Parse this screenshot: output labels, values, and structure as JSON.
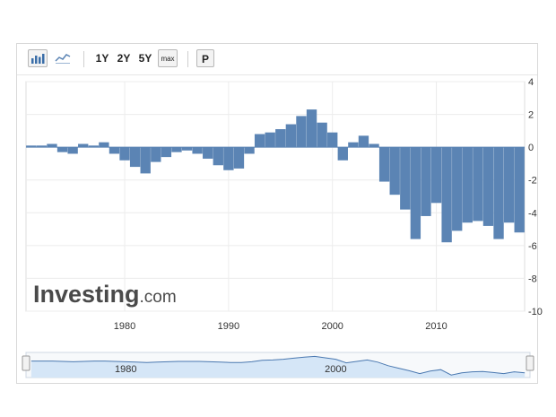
{
  "toolbar": {
    "buttons": [
      {
        "id": "bar-chart",
        "icon": "bar-chart-icon"
      },
      {
        "id": "line-chart",
        "icon": "line-chart-icon"
      },
      {
        "id": "1y",
        "label": "1Y"
      },
      {
        "id": "2y",
        "label": "2Y"
      },
      {
        "id": "5y",
        "label": "5Y"
      },
      {
        "id": "max",
        "label": "max"
      },
      {
        "id": "p",
        "label": "P"
      }
    ]
  },
  "watermark": {
    "brand": "Investing",
    "suffix": ".com"
  },
  "colors": {
    "bar": "#5b84b4",
    "navigator_fill": "#d5e6f7",
    "navigator_line": "#4a78b0",
    "grid": "#ececec"
  },
  "chart_data": {
    "type": "bar",
    "title": "",
    "xlabel": "",
    "ylabel": "",
    "xlim": [
      1970.5,
      2018.5
    ],
    "ylim": [
      -10,
      4
    ],
    "x_ticks": [
      1980,
      1990,
      2000,
      2010
    ],
    "y_ticks": [
      4,
      2,
      0,
      -2,
      -4,
      -6,
      -8,
      -10
    ],
    "y_axis_side": "right",
    "grid": true,
    "series": [
      {
        "x": [
          1971,
          1972,
          1973,
          1974,
          1975,
          1976,
          1977,
          1978,
          1979,
          1980,
          1981,
          1982,
          1983,
          1984,
          1985,
          1986,
          1987,
          1988,
          1989,
          1990,
          1991,
          1992,
          1993,
          1994,
          1995,
          1996,
          1997,
          1998,
          1999,
          2000,
          2001,
          2002,
          2003,
          2004,
          2005,
          2006,
          2007,
          2008,
          2009,
          2010,
          2011,
          2012,
          2013,
          2014,
          2015,
          2016,
          2017,
          2018
        ],
        "values": [
          0.1,
          0.1,
          0.2,
          -0.3,
          -0.4,
          0.2,
          0.1,
          0.3,
          -0.4,
          -0.8,
          -1.2,
          -1.6,
          -0.9,
          -0.6,
          -0.3,
          -0.2,
          -0.4,
          -0.7,
          -1.1,
          -1.4,
          -1.3,
          -0.4,
          0.8,
          0.9,
          1.1,
          1.4,
          1.9,
          2.3,
          1.5,
          0.9,
          -0.8,
          0.3,
          0.7,
          0.2,
          -2.1,
          -2.9,
          -3.8,
          -5.6,
          -4.2,
          -3.4,
          -5.8,
          -5.1,
          -4.6,
          -4.5,
          -4.8,
          -5.6,
          -4.6,
          -5.2
        ]
      }
    ],
    "navigator": {
      "x_ticks": [
        1980,
        2000
      ],
      "values": [
        0.1,
        0.1,
        0.1,
        0.0,
        -0.1,
        0.0,
        0.1,
        0.1,
        0.0,
        -0.1,
        -0.2,
        -0.3,
        -0.2,
        -0.1,
        0.0,
        0.0,
        0.0,
        -0.1,
        -0.2,
        -0.3,
        -0.3,
        -0.1,
        0.3,
        0.4,
        0.6,
        0.9,
        1.2,
        1.4,
        1.0,
        0.6,
        -0.4,
        0.0,
        0.4,
        -0.2,
        -1.2,
        -1.9,
        -2.6,
        -3.4,
        -2.7,
        -2.3,
        -3.8,
        -3.2,
        -2.9,
        -2.8,
        -3.1,
        -3.4,
        -2.9,
        -3.2
      ]
    }
  }
}
